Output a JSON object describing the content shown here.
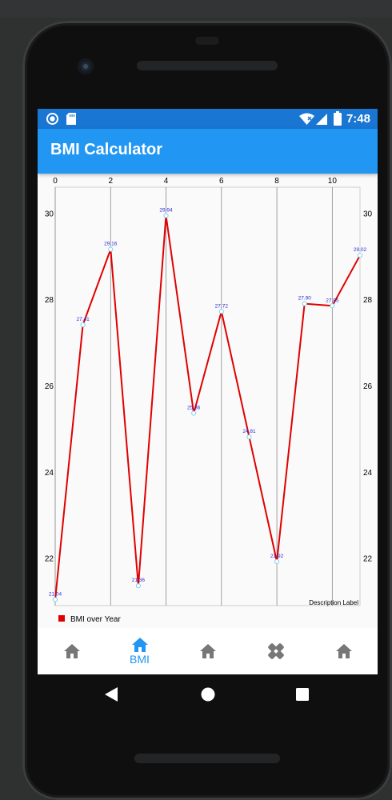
{
  "status_bar": {
    "time": "7:48"
  },
  "app_bar": {
    "title": "BMI Calculator"
  },
  "bottom_nav": {
    "items": [
      {
        "icon": "home-icon",
        "label": ""
      },
      {
        "icon": "home-icon",
        "label": "BMI",
        "active": true
      },
      {
        "icon": "home-icon",
        "label": ""
      },
      {
        "icon": "bandage-icon",
        "label": ""
      },
      {
        "icon": "home-icon",
        "label": ""
      }
    ]
  },
  "colors": {
    "primary": "#2196f3",
    "status_bar": "#1976d2",
    "line": "#e00000",
    "value_label": "#2a2ad8",
    "inactive_icon": "#777777"
  },
  "chart_data": {
    "type": "line",
    "title": "",
    "xlabel": "",
    "ylabel": "",
    "description": "Description Label",
    "xlim": [
      0,
      11
    ],
    "ylim": [
      20.9,
      30.6
    ],
    "x_ticks": [
      0,
      2,
      4,
      6,
      8,
      10
    ],
    "y_ticks": [
      22,
      24,
      26,
      28,
      30
    ],
    "x_axis_position": "top",
    "y_axis_labels": "left-and-right",
    "grid": "vertical",
    "legend": "bottom-left",
    "series": [
      {
        "name": "BMI over Year",
        "color": "#e00000",
        "x": [
          0,
          1,
          2,
          3,
          4,
          5,
          6,
          7,
          8,
          9,
          10,
          11
        ],
        "y": [
          21.04,
          27.41,
          29.16,
          21.36,
          29.94,
          25.36,
          27.72,
          24.81,
          21.92,
          27.9,
          27.85,
          29.02
        ],
        "value_labels": [
          "21.04",
          "27.41",
          "29.16",
          "21.36",
          "29.94",
          "25.36",
          "27.72",
          "24.81",
          "21.92",
          "27.90",
          "27.85",
          "29.02"
        ]
      }
    ]
  }
}
